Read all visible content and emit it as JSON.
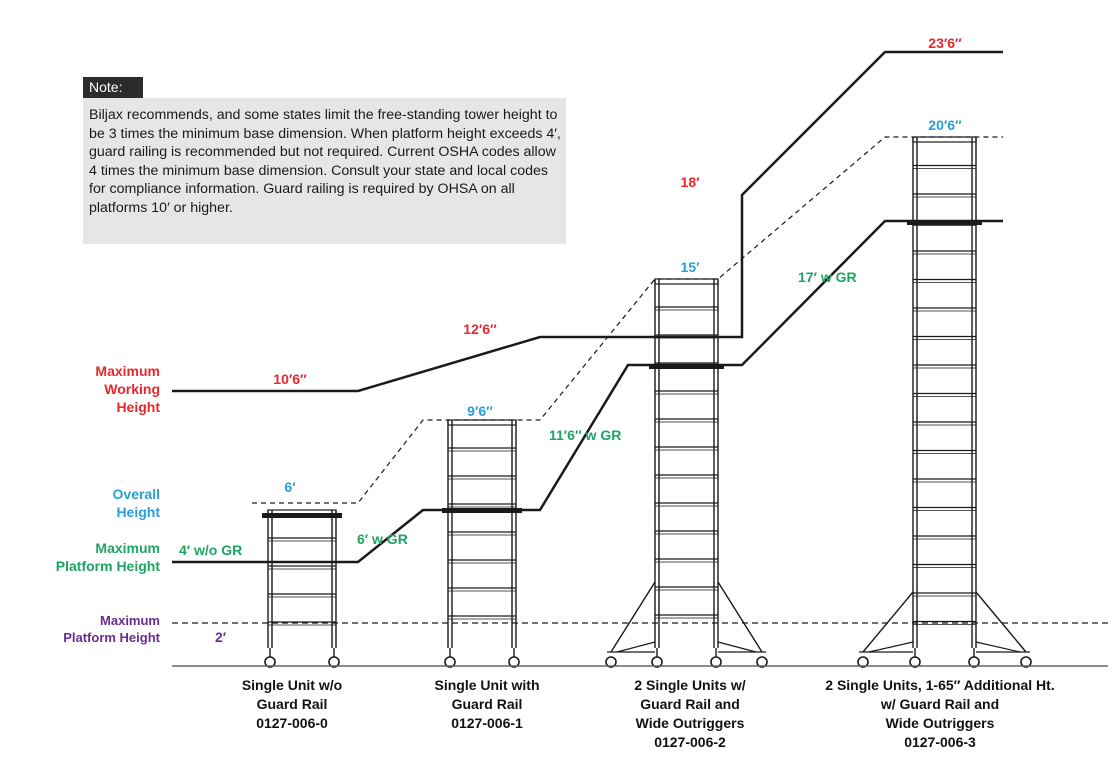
{
  "note": {
    "tag": "Note:",
    "text": "Biljax recommends, and some states limit the free-standing tower height to be 3 times the minimum base dimension. When platform height exceeds 4′, guard railing is recommended but not required.  Current OSHA codes allow 4 times the minimum base dimension. Consult your state and local codes for compliance information. Guard railing is required by OHSA on all platforms 10′ or higher."
  },
  "legend": {
    "working": [
      "Maximum",
      "Working",
      "Height"
    ],
    "overall": [
      "Overall",
      "Height"
    ],
    "platform": [
      "Maximum",
      "Platform Height"
    ],
    "low_platform": [
      "Maximum",
      "Platform Height"
    ]
  },
  "heights": {
    "working": [
      "10′6″",
      "12′6″",
      "18′",
      "23′6″"
    ],
    "overall": [
      "6′",
      "9′6″",
      "15′",
      "20′6″"
    ],
    "platform": [
      "4′ w/o GR",
      "6′ w GR",
      "11′6″ w GR",
      "17′ w GR"
    ],
    "low_platform": "2′"
  },
  "units": [
    {
      "lines": [
        "Single Unit w/o",
        "Guard Rail",
        "0127-006-0"
      ]
    },
    {
      "lines": [
        "Single Unit with",
        "Guard Rail",
        "0127-006-1"
      ]
    },
    {
      "lines": [
        "2 Single Units w/",
        "Guard Rail and",
        "Wide Outriggers",
        "0127-006-2"
      ]
    },
    {
      "lines": [
        "2 Single Units, 1-65″ Additional Ht.",
        "w/ Guard Rail and",
        "Wide Outriggers",
        "0127-006-3"
      ]
    }
  ],
  "colors": {
    "working": "#e8262b",
    "overall": "#2a9fd6",
    "platform": "#1ea463",
    "low_platform": "#6a2c91",
    "line": "#1a1a1a",
    "note_bg": "#e6e6e6",
    "note_tag_bg": "#2b2b2b"
  }
}
